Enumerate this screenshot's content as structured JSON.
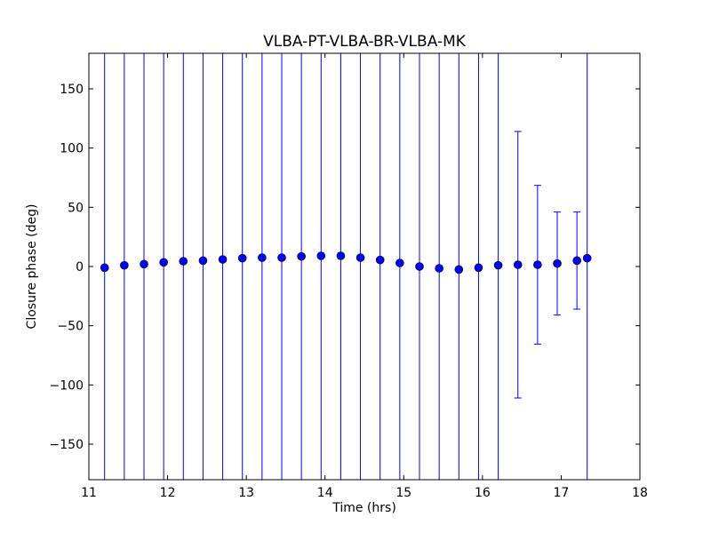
{
  "chart_data": {
    "type": "scatter",
    "title": "VLBA-PT-VLBA-BR-VLBA-MK",
    "xlabel": "Time (hrs)",
    "ylabel": "Closure phase (deg)",
    "xlim": [
      11,
      18
    ],
    "ylim": [
      -180,
      180
    ],
    "xticks": [
      11,
      12,
      13,
      14,
      15,
      16,
      17,
      18
    ],
    "xtick_labels": [
      "11",
      "12",
      "13",
      "14",
      "15",
      "16",
      "17",
      "18"
    ],
    "yticks": [
      -150,
      -100,
      -50,
      0,
      50,
      100,
      150
    ],
    "ytick_labels": [
      "−150",
      "−100",
      "−50",
      "0",
      "50",
      "100",
      "150"
    ],
    "grid": false,
    "legend": false,
    "marker_color": "#0000ff",
    "errorbar_color": "#0000ff",
    "series": [
      {
        "x": [
          11.2,
          11.45,
          11.7,
          11.95,
          12.2,
          12.45,
          12.7,
          12.95,
          13.2,
          13.45,
          13.7,
          13.95,
          14.2,
          14.45,
          14.7,
          14.95,
          15.2,
          15.45,
          15.7,
          15.95,
          16.2,
          16.45,
          16.7,
          16.95,
          17.2,
          17.33
        ],
        "y": [
          -1,
          1,
          2,
          3.5,
          4.5,
          5,
          6,
          7,
          7.5,
          7.5,
          8.5,
          9,
          9,
          7.5,
          5.5,
          3,
          0,
          -1.5,
          -2.5,
          -1,
          1,
          1.5,
          1.5,
          2.5,
          5,
          7
        ],
        "yerr": [
          null,
          null,
          null,
          null,
          null,
          null,
          null,
          null,
          null,
          null,
          null,
          null,
          null,
          null,
          null,
          null,
          null,
          null,
          null,
          null,
          null,
          112.5,
          67,
          43.5,
          41,
          null
        ]
      }
    ]
  }
}
